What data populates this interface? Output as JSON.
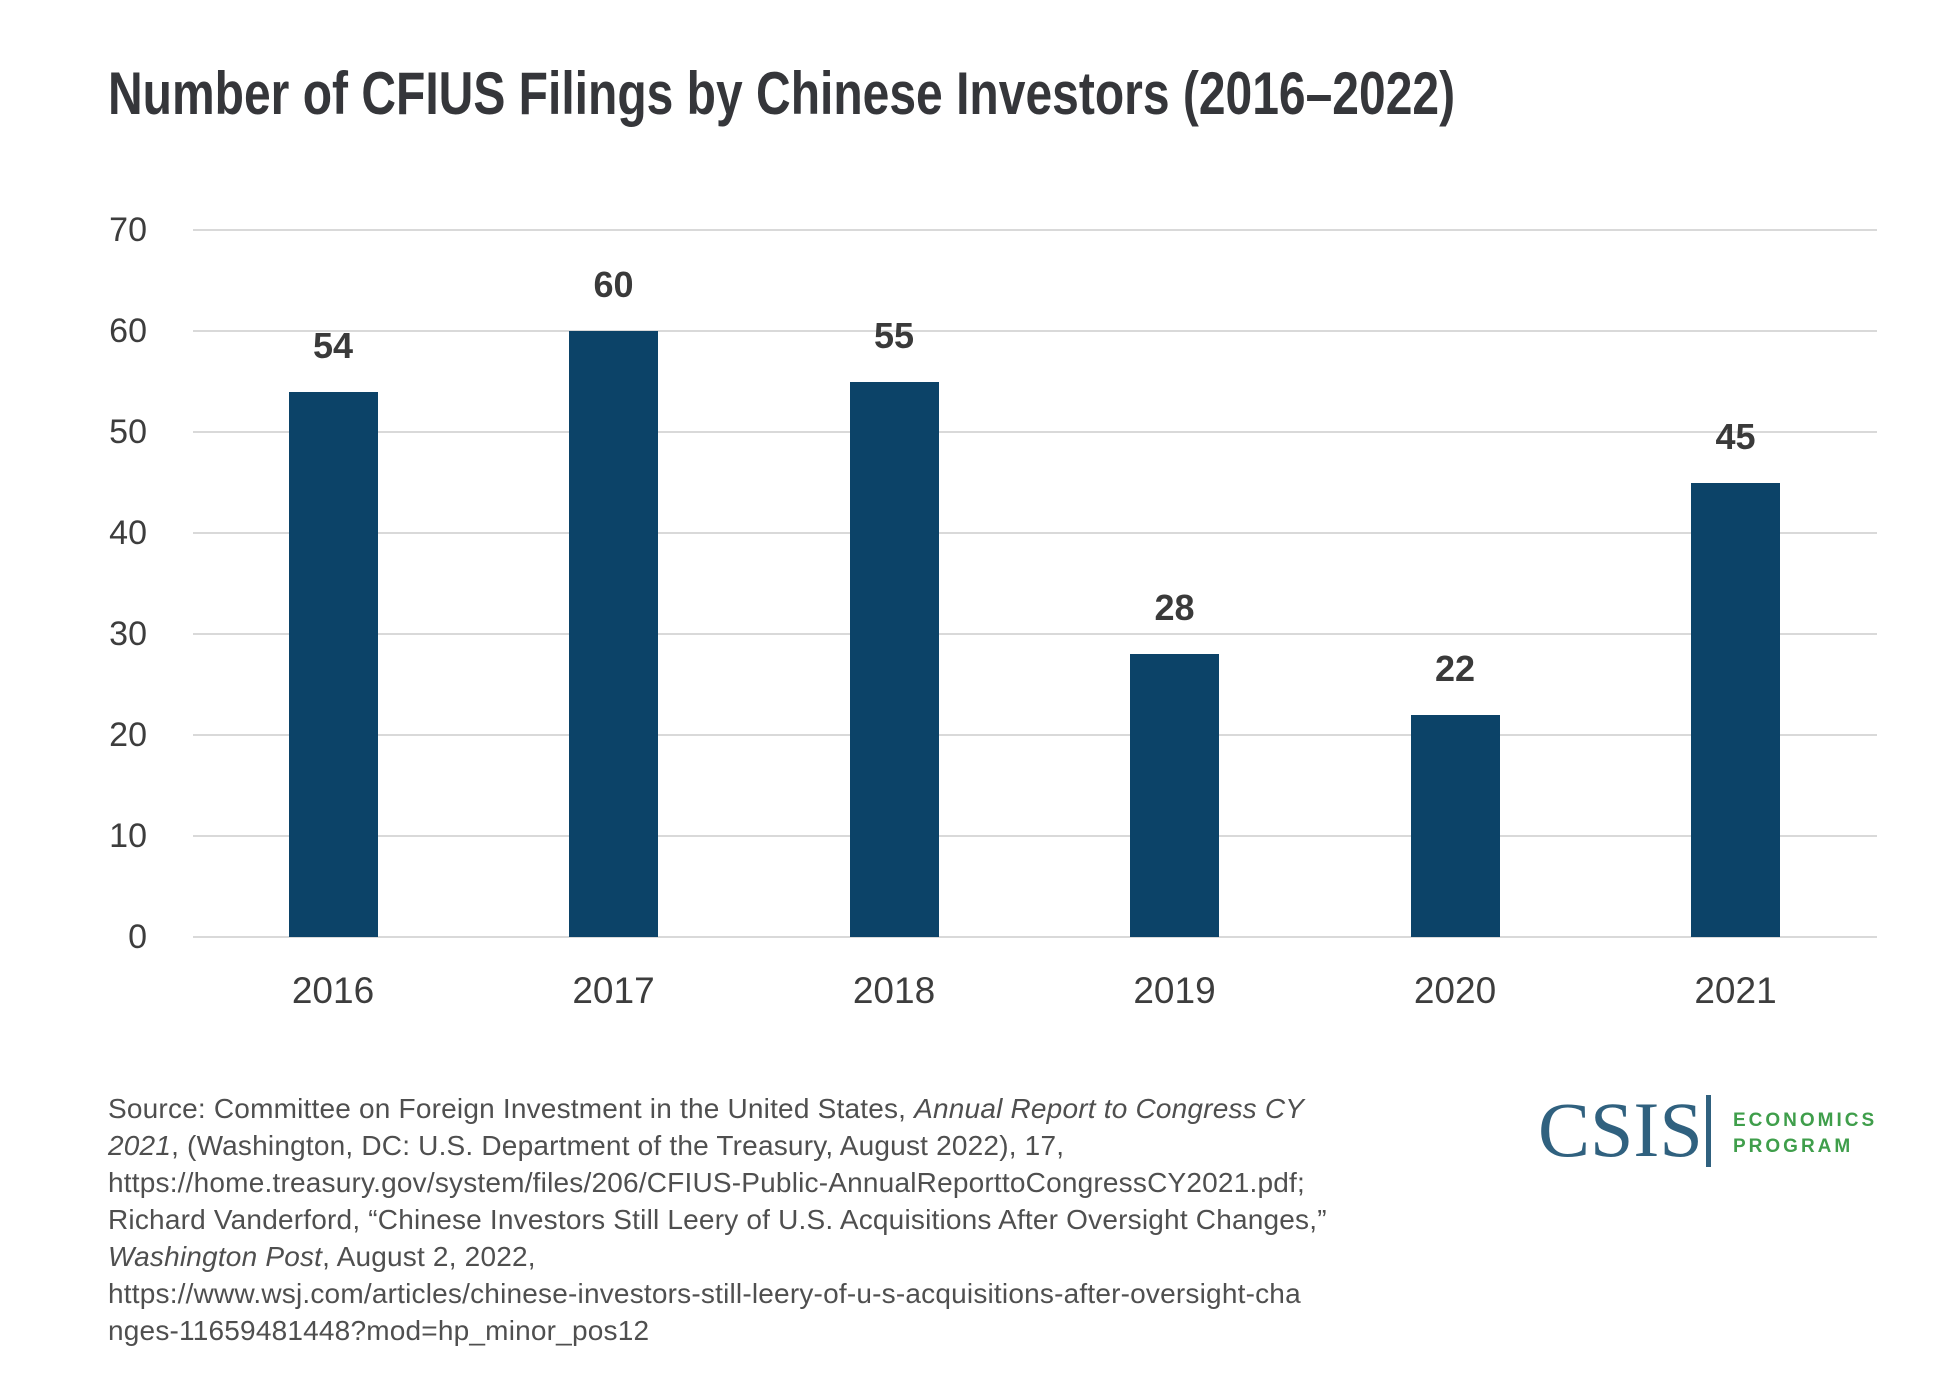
{
  "title": "Number of CFIUS Filings by Chinese Investors (2016–2022)",
  "chart_data": {
    "type": "bar",
    "title": "Number of CFIUS Filings by Chinese Investors (2016–2022)",
    "categories": [
      "2016",
      "2017",
      "2018",
      "2019",
      "2020",
      "2021"
    ],
    "values": [
      54,
      60,
      55,
      28,
      22,
      45
    ],
    "xlabel": "",
    "ylabel": "",
    "ylim": [
      0,
      70
    ],
    "yticks": [
      0,
      10,
      20,
      30,
      40,
      50,
      60,
      70
    ],
    "grid": "horizontal",
    "legend": "none",
    "bar_color": "#0C4368",
    "gridline_color": "#D9D9D9",
    "value_label_color": "#3A3A3A",
    "axis_label_color": "#3D3D3D"
  },
  "source": {
    "lines": [
      [
        {
          "text": "Source: Committee on Foreign Investment in the United States, ",
          "italic": false
        },
        {
          "text": "Annual Report to Congress CY",
          "italic": true
        }
      ],
      [
        {
          "text": "2021",
          "italic": true
        },
        {
          "text": ", (Washington, DC: U.S. Department of the Treasury, August 2022), 17,",
          "italic": false
        }
      ],
      [
        {
          "text": "https://home.treasury.gov/system/files/206/CFIUS-Public-AnnualReporttoCongressCY2021.pdf;",
          "italic": false
        }
      ],
      [
        {
          "text": "Richard Vanderford, “Chinese Investors Still Leery of U.S. Acquisitions After Oversight Changes,”",
          "italic": false
        }
      ],
      [
        {
          "text": "Washington Post",
          "italic": true
        },
        {
          "text": ", August 2, 2022,",
          "italic": false
        }
      ],
      [
        {
          "text": "https://www.wsj.com/articles/chinese-investors-still-leery-of-u-s-acquisitions-after-oversight-cha",
          "italic": false
        }
      ],
      [
        {
          "text": "nges-11659481448?mod=hp_minor_pos12",
          "italic": false
        }
      ]
    ]
  },
  "logo": {
    "wordmark": "CSIS",
    "program_line1": "ECONOMICS",
    "program_line2": "PROGRAM",
    "wordmark_color": "#30617F",
    "divider_color": "#30617F",
    "program_color": "#3F9E4B"
  }
}
